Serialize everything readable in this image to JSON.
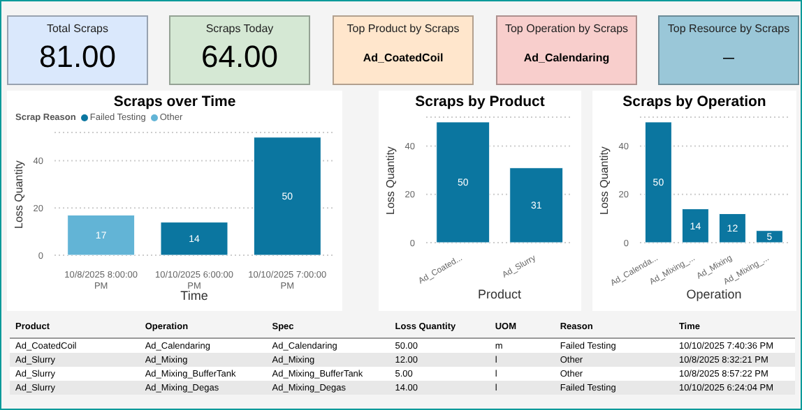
{
  "chart_data": [
    {
      "type": "other",
      "title": "Total Scraps",
      "annotations": [
        "81.00"
      ],
      "color": "#dae8fc"
    },
    {
      "type": "other",
      "title": "Scraps Today",
      "annotations": [
        "64.00"
      ],
      "color": "#d5e8d4"
    },
    {
      "type": "other",
      "title": "Top Product by Scraps",
      "annotations": [
        "Ad_CoatedCoil"
      ],
      "color": "#ffe6cc"
    },
    {
      "type": "other",
      "title": "Top Operation by Scraps",
      "annotations": [
        "Ad_Calendaring"
      ],
      "color": "#f8cecc"
    },
    {
      "type": "other",
      "title": "Top Resource by Scraps",
      "annotations": [
        "—"
      ],
      "color": "#9ac7d8"
    },
    {
      "type": "bar",
      "title": "Scraps over Time",
      "xlabel": "Time",
      "ylabel": "Loss Quantity",
      "legend_title": "Scrap Reason",
      "legend": "top left",
      "stacked": true,
      "data_labels": true,
      "grid": "y",
      "ylim": [
        0,
        52
      ],
      "yticks": [
        0,
        20,
        40
      ],
      "categories": [
        "10/8/2025 8:00:00 PM",
        "10/10/2025 6:00:00 PM",
        "10/10/2025 7:00:00 PM"
      ],
      "series": [
        {
          "name": "Failed Testing",
          "color": "#0b76a0",
          "values": [
            null,
            14,
            50
          ]
        },
        {
          "name": "Other",
          "color": "#62b4d6",
          "values": [
            17,
            null,
            null
          ]
        }
      ]
    },
    {
      "type": "bar",
      "title": "Scraps by Product",
      "xlabel": "Product",
      "ylabel": "Loss Quantity",
      "data_labels": true,
      "grid": "y",
      "ylim": [
        0,
        52
      ],
      "yticks": [
        0,
        20,
        40
      ],
      "categories": [
        "Ad_Coated...",
        "Ad_Slurry"
      ],
      "series": [
        {
          "color": "#0b76a0",
          "values": [
            50,
            31
          ]
        }
      ]
    },
    {
      "type": "bar",
      "title": "Scraps by Operation",
      "xlabel": "Operation",
      "ylabel": "Loss Quantity",
      "data_labels": true,
      "grid": "y",
      "ylim": [
        0,
        52
      ],
      "yticks": [
        0,
        20,
        40
      ],
      "categories": [
        "Ad_Calenda...",
        "Ad_Mixing_...",
        "Ad_Mixing",
        "Ad_Mixing_..."
      ],
      "series": [
        {
          "color": "#0b76a0",
          "values": [
            50,
            14,
            12,
            5
          ]
        }
      ]
    },
    {
      "type": "other",
      "categories": [
        "Product",
        "Operation",
        "Spec",
        "Loss Quantity",
        "UOM",
        "Reason",
        "Time"
      ],
      "annotations": [
        "Ad_CoatedCoil",
        "Ad_Calendaring",
        "Ad_Calendaring",
        "50.00",
        "m",
        "Failed Testing",
        "10/10/2025 7:40:36 PM",
        "Ad_Slurry",
        "Ad_Mixing",
        "Ad_Mixing",
        "12.00",
        "l",
        "Other",
        "10/8/2025 8:32:21 PM",
        "Ad_Slurry",
        "Ad_Mixing_BufferTank",
        "Ad_Mixing_BufferTank",
        "5.00",
        "l",
        "Other",
        "10/8/2025 8:57:22 PM",
        "Ad_Slurry",
        "Ad_Mixing_Degas",
        "Ad_Mixing_Degas",
        "14.00",
        "l",
        "Failed Testing",
        "10/10/2025 6:24:04 PM"
      ]
    }
  ]
}
